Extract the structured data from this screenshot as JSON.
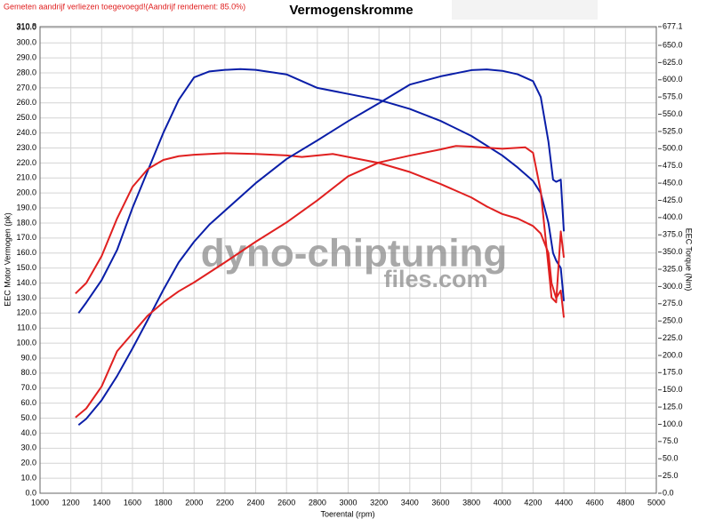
{
  "chart_data": {
    "type": "line",
    "title": "Vermogenskromme",
    "subtitle": "Gemeten aandrijf verliezen toegevoegd!(Aandrijf rendement: 85.0%)",
    "watermark": [
      "dyno-chiptuning",
      "files.com"
    ],
    "x_label": "Toerental (rpm)",
    "y_label": "EEC Motor Vermogen (pk)",
    "y2_label": "EEC Torque (Nm)",
    "grid": true,
    "xlim": [
      1000,
      5000
    ],
    "xticks": [
      1000,
      1200,
      1400,
      1600,
      1800,
      2000,
      2200,
      2400,
      2600,
      2800,
      3000,
      3200,
      3400,
      3600,
      3800,
      4000,
      4200,
      4400,
      4600,
      4800,
      5000
    ],
    "ylim": [
      0,
      310.8
    ],
    "yticks": [
      {
        "value": 0,
        "label": "0.0"
      },
      {
        "value": 10,
        "label": "10.0"
      },
      {
        "value": 20,
        "label": "20.0"
      },
      {
        "value": 30,
        "label": "30.0"
      },
      {
        "value": 40,
        "label": "40.0"
      },
      {
        "value": 50,
        "label": "50.0"
      },
      {
        "value": 60,
        "label": "60.0"
      },
      {
        "value": 70,
        "label": "70.0"
      },
      {
        "value": 80,
        "label": "80.0"
      },
      {
        "value": 90,
        "label": "90.0"
      },
      {
        "value": 100,
        "label": "100.0"
      },
      {
        "value": 110,
        "label": "110.0"
      },
      {
        "value": 120,
        "label": "120.0"
      },
      {
        "value": 130,
        "label": "130.0"
      },
      {
        "value": 140,
        "label": "140.0"
      },
      {
        "value": 150,
        "label": "150.0"
      },
      {
        "value": 160,
        "label": "160.0"
      },
      {
        "value": 170,
        "label": "170.0"
      },
      {
        "value": 180,
        "label": "180.0"
      },
      {
        "value": 190,
        "label": "190.0"
      },
      {
        "value": 200,
        "label": "200.0"
      },
      {
        "value": 210,
        "label": "210.0"
      },
      {
        "value": 220,
        "label": "220.0"
      },
      {
        "value": 230,
        "label": "230.0"
      },
      {
        "value": 240,
        "label": "240.0"
      },
      {
        "value": 250,
        "label": "250.0"
      },
      {
        "value": 260,
        "label": "260.0"
      },
      {
        "value": 270,
        "label": "270.0"
      },
      {
        "value": 280,
        "label": "280.0"
      },
      {
        "value": 290,
        "label": "290.0"
      },
      {
        "value": 300,
        "label": "300.0"
      },
      {
        "value": 310,
        "label": "310.0"
      },
      {
        "value": 310.8,
        "label": "310.8"
      }
    ],
    "y2lim": [
      0,
      677.1
    ],
    "y2ticks": [
      {
        "value": 0,
        "label": "0.0"
      },
      {
        "value": 25,
        "label": "25.0"
      },
      {
        "value": 50,
        "label": "50.0"
      },
      {
        "value": 75,
        "label": "75.0"
      },
      {
        "value": 100,
        "label": "100.0"
      },
      {
        "value": 125,
        "label": "125.0"
      },
      {
        "value": 150,
        "label": "150.0"
      },
      {
        "value": 175,
        "label": "175.0"
      },
      {
        "value": 200,
        "label": "200.0"
      },
      {
        "value": 225,
        "label": "225.0"
      },
      {
        "value": 250,
        "label": "250.0"
      },
      {
        "value": 275,
        "label": "275.0"
      },
      {
        "value": 300,
        "label": "300.0"
      },
      {
        "value": 325,
        "label": "325.0"
      },
      {
        "value": 350,
        "label": "350.0"
      },
      {
        "value": 375,
        "label": "375.0"
      },
      {
        "value": 400,
        "label": "400.0"
      },
      {
        "value": 425,
        "label": "425.0"
      },
      {
        "value": 450,
        "label": "450.0"
      },
      {
        "value": 475,
        "label": "475.0"
      },
      {
        "value": 500,
        "label": "500.0"
      },
      {
        "value": 525,
        "label": "525.0"
      },
      {
        "value": 550,
        "label": "550.0"
      },
      {
        "value": 575,
        "label": "575.0"
      },
      {
        "value": 600,
        "label": "600.0"
      },
      {
        "value": 625,
        "label": "625.0"
      },
      {
        "value": 650,
        "label": "650.0"
      },
      {
        "value": 677.1,
        "label": "677.1"
      }
    ],
    "series": [
      {
        "color": "#0a1ea8",
        "axis": "y",
        "x": [
          1250,
          1300,
          1400,
          1500,
          1600,
          1700,
          1800,
          1900,
          2000,
          2100,
          2200,
          2300,
          2400,
          2600,
          2800,
          3000,
          3200,
          3400,
          3600,
          3800,
          4000,
          4100,
          4200,
          4250,
          4300,
          4330,
          4350,
          4380,
          4400
        ],
        "values": [
          120,
          127,
          142,
          162,
          190,
          215,
          240,
          262,
          277,
          281,
          282,
          282.5,
          282,
          279,
          270,
          266,
          262,
          256,
          248,
          238,
          225,
          217,
          208,
          200,
          180,
          160,
          155,
          150,
          128
        ]
      },
      {
        "color": "#e02020",
        "axis": "y",
        "x": [
          1230,
          1300,
          1400,
          1500,
          1600,
          1700,
          1800,
          1900,
          2000,
          2200,
          2400,
          2600,
          2700,
          2900,
          3000,
          3200,
          3400,
          3600,
          3800,
          3900,
          4000,
          4100,
          4200,
          4250,
          4300,
          4320,
          4350,
          4380,
          4400
        ],
        "values": [
          133,
          140,
          158,
          183,
          204,
          216,
          222,
          224.5,
          225.5,
          226.5,
          226,
          225,
          224,
          226,
          224,
          220,
          214,
          206,
          197,
          191,
          186,
          183,
          178,
          173,
          160,
          140,
          130,
          135,
          117
        ]
      },
      {
        "color": "#0a1ea8",
        "axis": "y2",
        "x": [
          1250,
          1300,
          1400,
          1500,
          1600,
          1700,
          1800,
          1900,
          2000,
          2100,
          2200,
          2400,
          2600,
          2800,
          3000,
          3200,
          3400,
          3600,
          3800,
          3900,
          4000,
          4100,
          4200,
          4250,
          4300,
          4330,
          4350,
          4380,
          4400
        ],
        "values": [
          99,
          108,
          135,
          170,
          210,
          252,
          295,
          335,
          365,
          390,
          410,
          450,
          485,
          512,
          540,
          566,
          593,
          605,
          614,
          615,
          613,
          608,
          598,
          575,
          510,
          455,
          452,
          455,
          380
        ]
      },
      {
        "color": "#e02020",
        "axis": "y2",
        "x": [
          1230,
          1300,
          1400,
          1500,
          1600,
          1700,
          1800,
          1900,
          2000,
          2200,
          2400,
          2600,
          2800,
          3000,
          3200,
          3400,
          3600,
          3700,
          3800,
          4000,
          4150,
          4200,
          4250,
          4300,
          4320,
          4350,
          4380,
          4400
        ],
        "values": [
          110,
          123,
          155,
          206,
          232,
          258,
          277,
          293,
          306,
          335,
          365,
          393,
          425,
          460,
          480,
          490,
          499,
          504,
          503,
          500,
          502,
          494,
          438,
          329,
          284,
          277,
          380,
          342
        ]
      }
    ]
  }
}
